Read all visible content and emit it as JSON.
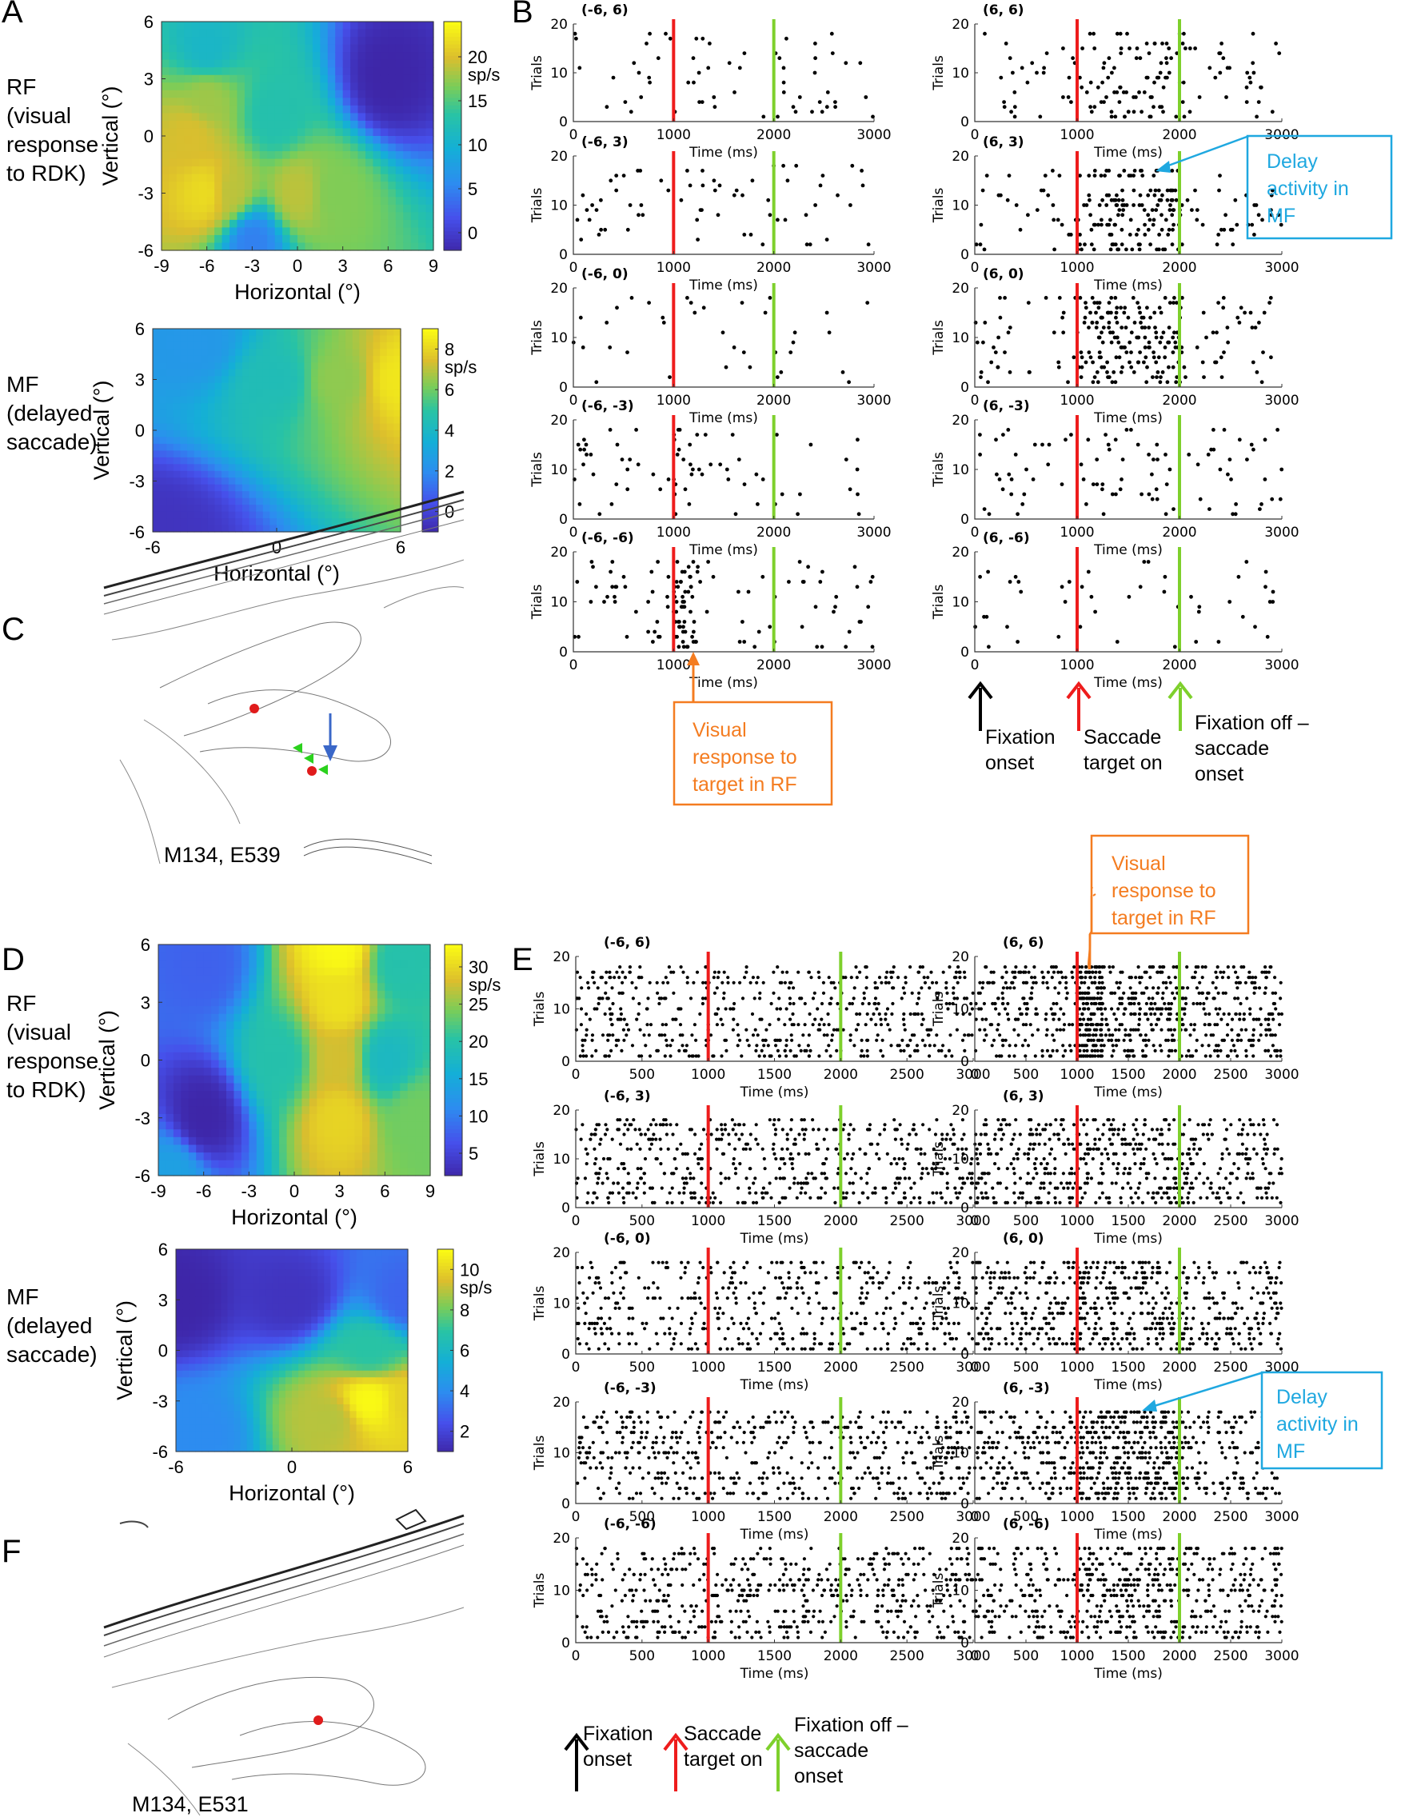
{
  "panels": {
    "A": "A",
    "B": "B",
    "C": "C",
    "D": "D",
    "E": "E",
    "F": "F"
  },
  "side_labels": {
    "rf": [
      "RF",
      "(visual",
      "response",
      "to RDK)"
    ],
    "mf": [
      "MF",
      "(delayed",
      "saccade)"
    ]
  },
  "colors": {
    "red_line": "#ee1c1c",
    "green_line": "#7ed02c",
    "orange": "#f47c20",
    "blue": "#1fa8e0",
    "black": "#000000"
  },
  "chart_data": [
    {
      "id": "A-RF",
      "type": "heatmap",
      "title": "",
      "xlabel": "Horizontal (°)",
      "ylabel": "Vertical (°)",
      "xlim": [
        -9,
        9
      ],
      "ylim": [
        -6,
        6
      ],
      "xticks": [
        "-9",
        "-6",
        "-3",
        "0",
        "3",
        "6",
        "9"
      ],
      "yticks": [
        "-6",
        "-3",
        "0",
        "3",
        "6"
      ],
      "colorbar": {
        "label": "sp/s",
        "ticks": [
          "0",
          "5",
          "10",
          "15",
          "20"
        ],
        "range": [
          -2,
          24
        ]
      },
      "peaks": [
        {
          "x": -6,
          "y": -3,
          "rate": 22
        },
        {
          "x": -4.5,
          "y": -3,
          "rate": 19
        },
        {
          "x": 0,
          "y": -3,
          "rate": 19
        },
        {
          "x": 2.5,
          "y": -3,
          "rate": 17
        },
        {
          "x": -7,
          "y": 0,
          "rate": 20
        },
        {
          "x": -6,
          "y": 2,
          "rate": 18
        },
        {
          "x": -6,
          "y": 4.5,
          "rate": 11
        },
        {
          "x": -3,
          "y": -5.5,
          "rate": 5
        },
        {
          "x": 6,
          "y": 3,
          "rate": -2
        },
        {
          "x": -1.5,
          "y": 1,
          "rate": 13
        }
      ]
    },
    {
      "id": "A-MF",
      "type": "heatmap",
      "title": "",
      "xlabel": "Horizontal (°)",
      "ylabel": "Vertical (°)",
      "xlim": [
        -6,
        6
      ],
      "ylim": [
        -6,
        6
      ],
      "xticks": [
        "-6",
        "0",
        "6"
      ],
      "yticks": [
        "-6",
        "-3",
        "0",
        "3",
        "6"
      ],
      "colorbar": {
        "label": "sp/s",
        "ticks": [
          "0",
          "2",
          "4",
          "6",
          "8"
        ],
        "range": [
          -1,
          9
        ]
      },
      "peaks": [
        {
          "x": 6,
          "y": 3,
          "rate": 8.5
        },
        {
          "x": 3,
          "y": 3,
          "rate": 6.5
        },
        {
          "x": 0,
          "y": 3,
          "rate": 4.5
        },
        {
          "x": -4,
          "y": 5,
          "rate": 2.5
        },
        {
          "x": -6,
          "y": -6,
          "rate": -0.5
        }
      ]
    },
    {
      "id": "B",
      "type": "scatter",
      "subtype": "raster",
      "xlim": [
        0,
        3000
      ],
      "ylim": [
        0,
        20
      ],
      "xticks": [
        "0",
        "1000",
        "2000",
        "3000"
      ],
      "yticks": [
        "0",
        "10",
        "20"
      ],
      "xlabel": "Time (ms)",
      "ylabel": "Trials",
      "events": [
        {
          "name": "Saccade target on",
          "t": 1000,
          "color": "red"
        },
        {
          "name": "Fixation off – saccade onset",
          "t": 2000,
          "color": "green"
        }
      ],
      "conditions": [
        {
          "label": "(-6, 6)",
          "spikes_per_trial": 4,
          "delay_boost": 1.0,
          "visual_boost": 1.0
        },
        {
          "label": "(6, 6)",
          "spikes_per_trial": 6,
          "delay_boost": 2.2,
          "visual_boost": 1.0
        },
        {
          "label": "(-6, 3)",
          "spikes_per_trial": 4,
          "delay_boost": 1.0,
          "visual_boost": 1.0
        },
        {
          "label": "(6, 3)",
          "spikes_per_trial": 6,
          "delay_boost": 4.0,
          "visual_boost": 1.0
        },
        {
          "label": "(-6, 0)",
          "spikes_per_trial": 3,
          "delay_boost": 1.0,
          "visual_boost": 1.0
        },
        {
          "label": "(6, 0)",
          "spikes_per_trial": 6,
          "delay_boost": 3.2,
          "visual_boost": 1.0
        },
        {
          "label": "(-6, -3)",
          "spikes_per_trial": 3,
          "delay_boost": 1.0,
          "visual_boost": 2.0
        },
        {
          "label": "(6, -3)",
          "spikes_per_trial": 4,
          "delay_boost": 1.6,
          "visual_boost": 1.0
        },
        {
          "label": "(-6, -6)",
          "spikes_per_trial": 5,
          "delay_boost": 1.0,
          "visual_boost": 2.5
        },
        {
          "label": "(6, -6)",
          "spikes_per_trial": 3,
          "delay_boost": 1.0,
          "visual_boost": 1.0
        }
      ]
    },
    {
      "id": "D-RF",
      "type": "heatmap",
      "title": "",
      "xlabel": "Horizontal (°)",
      "ylabel": "Vertical (°)",
      "xlim": [
        -9,
        9
      ],
      "ylim": [
        -6,
        6
      ],
      "xticks": [
        "-9",
        "-6",
        "-3",
        "0",
        "3",
        "6",
        "9"
      ],
      "yticks": [
        "-6",
        "-3",
        "0",
        "3",
        "6"
      ],
      "colorbar": {
        "label": "sp/s",
        "ticks": [
          "5",
          "10",
          "15",
          "20",
          "25",
          "30"
        ],
        "range": [
          2,
          33
        ]
      },
      "peaks": [
        {
          "x": 3,
          "y": 6,
          "rate": 33
        },
        {
          "x": 3,
          "y": 3,
          "rate": 31
        },
        {
          "x": 3,
          "y": 0,
          "rate": 28
        },
        {
          "x": 3,
          "y": -3,
          "rate": 30
        },
        {
          "x": 6,
          "y": 0,
          "rate": 18
        },
        {
          "x": 8,
          "y": -3,
          "rate": 24
        },
        {
          "x": 7,
          "y": 5,
          "rate": 20
        },
        {
          "x": -6,
          "y": -3,
          "rate": 2
        },
        {
          "x": -6,
          "y": 5,
          "rate": 8
        },
        {
          "x": -8,
          "y": -6,
          "rate": 14
        },
        {
          "x": -1,
          "y": 0,
          "rate": 20
        }
      ]
    },
    {
      "id": "D-MF",
      "type": "heatmap",
      "title": "",
      "xlabel": "Horizontal (°)",
      "ylabel": "Vertical (°)",
      "xlim": [
        -6,
        6
      ],
      "ylim": [
        -6,
        6
      ],
      "xticks": [
        "-6",
        "0",
        "6"
      ],
      "yticks": [
        "-6",
        "-3",
        "0",
        "3",
        "6"
      ],
      "colorbar": {
        "label": "sp/s",
        "ticks": [
          "2",
          "4",
          "6",
          "8",
          "10"
        ],
        "range": [
          1,
          11
        ]
      },
      "peaks": [
        {
          "x": 4,
          "y": -3,
          "rate": 11
        },
        {
          "x": 6,
          "y": -3,
          "rate": 10
        },
        {
          "x": 2,
          "y": -4,
          "rate": 9
        },
        {
          "x": 4,
          "y": 0,
          "rate": 7
        },
        {
          "x": -6,
          "y": 3,
          "rate": 1
        },
        {
          "x": 0,
          "y": 3,
          "rate": 1.5
        },
        {
          "x": 6,
          "y": 3,
          "rate": 3
        },
        {
          "x": -5,
          "y": -5,
          "rate": 4
        }
      ]
    },
    {
      "id": "E",
      "type": "scatter",
      "subtype": "raster",
      "xlim": [
        0,
        3000
      ],
      "ylim": [
        0,
        20
      ],
      "xticks": [
        "0",
        "500",
        "1000",
        "1500",
        "2000",
        "2500",
        "3000"
      ],
      "yticks": [
        "0",
        "10",
        "20"
      ],
      "xlabel": "Time (ms)",
      "ylabel": "Trials",
      "events": [
        {
          "name": "Saccade target on",
          "t": 1000,
          "color": "red"
        },
        {
          "name": "Fixation off – saccade onset",
          "t": 2000,
          "color": "green"
        }
      ],
      "conditions": [
        {
          "label": "(-6, 6)",
          "spikes_per_trial": 30,
          "delay_boost": 1.0,
          "visual_boost": 1.0
        },
        {
          "label": "(6, 6)",
          "spikes_per_trial": 34,
          "delay_boost": 1.3,
          "visual_boost": 1.6
        },
        {
          "label": "(-6, 3)",
          "spikes_per_trial": 30,
          "delay_boost": 1.0,
          "visual_boost": 1.0
        },
        {
          "label": "(6, 3)",
          "spikes_per_trial": 28,
          "delay_boost": 1.2,
          "visual_boost": 1.0
        },
        {
          "label": "(-6, 0)",
          "spikes_per_trial": 26,
          "delay_boost": 1.0,
          "visual_boost": 1.0
        },
        {
          "label": "(6, 0)",
          "spikes_per_trial": 30,
          "delay_boost": 1.3,
          "visual_boost": 1.0
        },
        {
          "label": "(-6, -3)",
          "spikes_per_trial": 30,
          "delay_boost": 1.0,
          "visual_boost": 1.0
        },
        {
          "label": "(6, -3)",
          "spikes_per_trial": 30,
          "delay_boost": 1.8,
          "visual_boost": 1.0
        },
        {
          "label": "(-6, -6)",
          "spikes_per_trial": 30,
          "delay_boost": 1.0,
          "visual_boost": 1.0
        },
        {
          "label": "(6, -6)",
          "spikes_per_trial": 28,
          "delay_boost": 1.3,
          "visual_boost": 1.0
        }
      ]
    }
  ],
  "annotations": {
    "delay_activity_in_mf": [
      "Delay",
      "activity in",
      "MF"
    ],
    "visual_response": [
      "Visual",
      "response to",
      "target in RF"
    ],
    "fixation_onset": [
      "Fixation",
      "onset"
    ],
    "saccade_target_on": [
      "Saccade",
      "target on"
    ],
    "fixation_off": [
      "Fixation off –",
      "saccade",
      "onset"
    ]
  },
  "histology": {
    "c_label": "M134, E539",
    "f_label": "M134, E531"
  }
}
